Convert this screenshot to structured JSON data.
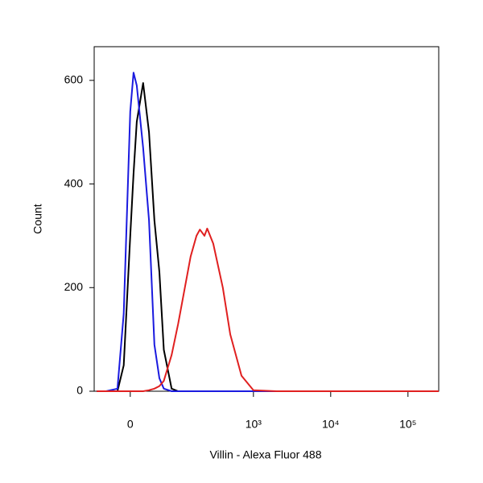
{
  "chart_data": {
    "type": "line",
    "xlabel": "Villin - Alexa Fluor 488",
    "ylabel": "Count",
    "xscale": "asinh",
    "x": [
      -60,
      -40,
      -20,
      -10,
      0,
      5,
      10,
      20,
      30,
      40,
      50,
      60,
      80,
      100,
      150,
      180,
      200,
      230,
      250,
      300,
      400,
      500,
      700,
      1000,
      2000,
      10000,
      250000
    ],
    "series": [
      {
        "color": "#000000",
        "values": [
          0,
          0,
          0,
          50,
          300,
          420,
          520,
          595,
          500,
          330,
          230,
          80,
          5,
          0,
          0,
          0,
          0,
          0,
          0,
          0,
          0,
          0,
          0,
          0,
          0,
          0,
          0
        ]
      },
      {
        "color": "#1a1adf",
        "values": [
          0,
          0,
          5,
          150,
          540,
          615,
          590,
          470,
          330,
          90,
          25,
          5,
          0,
          0,
          0,
          0,
          0,
          0,
          0,
          0,
          0,
          0,
          0,
          0,
          0,
          0,
          0
        ]
      },
      {
        "color": "#e02020",
        "values": [
          0,
          0,
          0,
          0,
          0,
          0,
          0,
          0,
          2,
          5,
          10,
          20,
          70,
          130,
          260,
          300,
          312,
          300,
          314,
          285,
          200,
          110,
          30,
          2,
          0,
          0,
          0
        ]
      }
    ],
    "xlim": [
      -66,
      250000
    ],
    "xticks": [
      0,
      {
        "value": 1000,
        "label": "10³"
      },
      {
        "value": 10000,
        "label": "10⁴"
      },
      {
        "value": 100000,
        "label": "10⁵"
      }
    ],
    "ylim": [
      0,
      665
    ],
    "yticks": [
      0,
      200,
      400,
      600
    ]
  }
}
